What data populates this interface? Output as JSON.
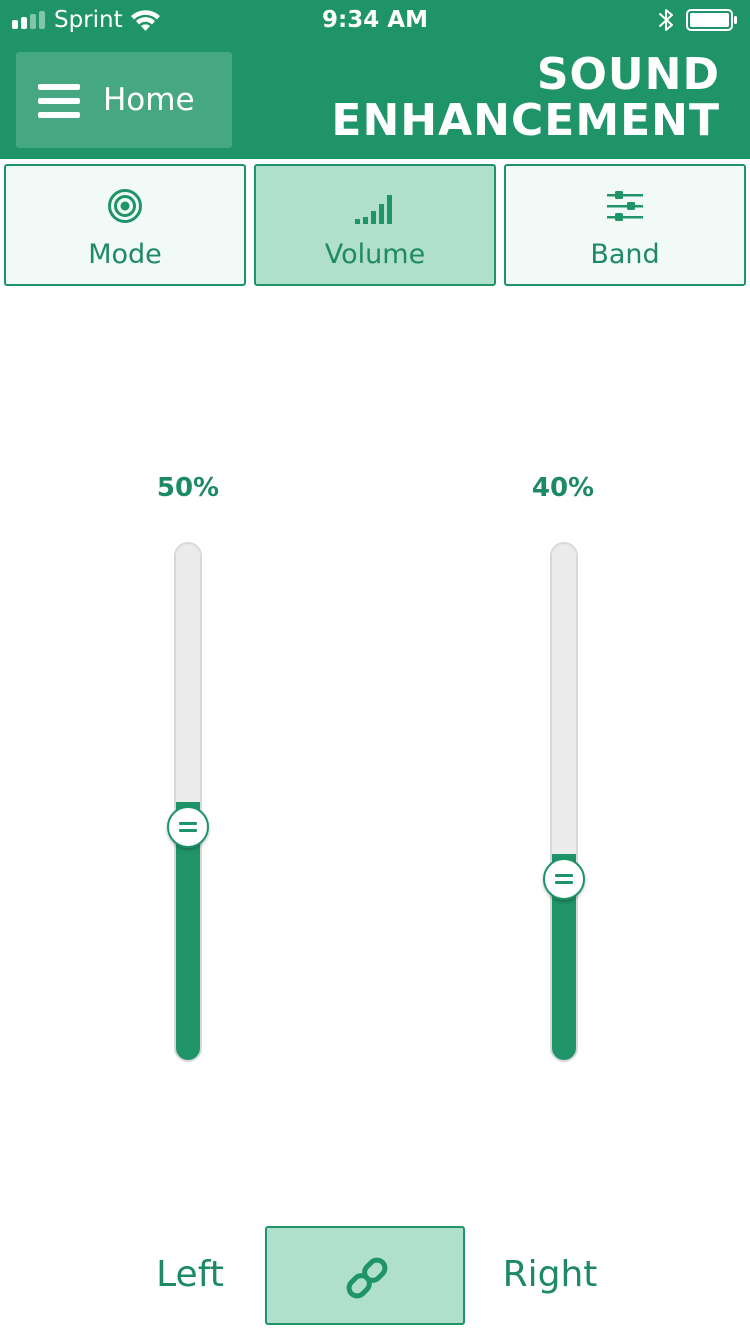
{
  "status_bar": {
    "carrier": "Sprint",
    "time": "9:34 AM",
    "icons": [
      "signal-icon",
      "wifi-icon",
      "bluetooth-icon",
      "battery-icon"
    ]
  },
  "header": {
    "home_label": "Home",
    "title_line1": "SOUND",
    "title_line2": "ENHANCEMENT"
  },
  "tabs": [
    {
      "label": "Mode",
      "icon": "target-icon",
      "active": false
    },
    {
      "label": "Volume",
      "icon": "volume-bars-icon",
      "active": true
    },
    {
      "label": "Band",
      "icon": "sliders-icon",
      "active": false
    }
  ],
  "sliders": {
    "left": {
      "percent_label": "50%",
      "value": 0.5
    },
    "right": {
      "percent_label": "40%",
      "value": 0.4
    }
  },
  "bottom": {
    "left_label": "Left",
    "right_label": "Right",
    "link_icon": "link-icon"
  },
  "colors": {
    "accent": "#1e9468",
    "accent_text": "#1e8a63",
    "tab_active_bg": "#b0dfcd",
    "tab_bg": "#f2faf7",
    "track_bg": "#ececec"
  }
}
